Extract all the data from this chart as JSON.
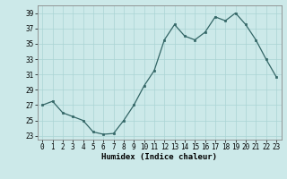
{
  "x": [
    0,
    1,
    2,
    3,
    4,
    5,
    6,
    7,
    8,
    9,
    10,
    11,
    12,
    13,
    14,
    15,
    16,
    17,
    18,
    19,
    20,
    21,
    22,
    23
  ],
  "y": [
    27,
    27.5,
    26,
    25.5,
    25,
    23.5,
    23.2,
    23.3,
    25,
    27,
    29.5,
    31.5,
    35.5,
    37.5,
    36,
    35.5,
    36.5,
    38.5,
    38,
    39,
    37.5,
    35.5,
    33,
    30.7
  ],
  "xlabel": "Humidex (Indice chaleur)",
  "ylabel": "",
  "bg_color": "#cce9e9",
  "grid_color": "#aad4d4",
  "line_color": "#336666",
  "marker_color": "#336666",
  "ylim": [
    22.5,
    40
  ],
  "xlim": [
    -0.5,
    23.5
  ],
  "yticks": [
    23,
    25,
    27,
    29,
    31,
    33,
    35,
    37,
    39
  ],
  "xticks": [
    0,
    1,
    2,
    3,
    4,
    5,
    6,
    7,
    8,
    9,
    10,
    11,
    12,
    13,
    14,
    15,
    16,
    17,
    18,
    19,
    20,
    21,
    22,
    23
  ]
}
